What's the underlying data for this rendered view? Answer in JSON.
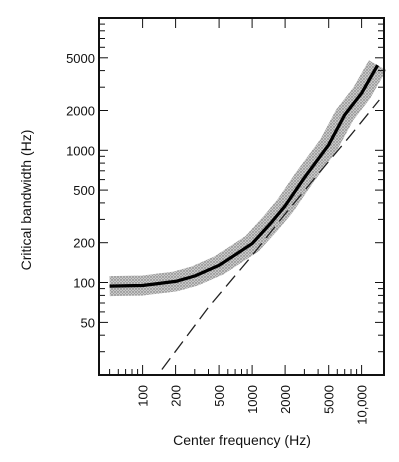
{
  "chart_data": {
    "type": "line",
    "title": "",
    "xlabel": "Center frequency (Hz)",
    "ylabel": "Critical bandwidth (Hz)",
    "x_scale": "log",
    "y_scale": "log",
    "xlim": [
      40,
      16000
    ],
    "ylim": [
      20,
      10000
    ],
    "x_tick_labels": [
      "100",
      "200",
      "500",
      "1000",
      "2000",
      "5000",
      "10,000"
    ],
    "x_tick_values": [
      100,
      200,
      500,
      1000,
      2000,
      5000,
      10000
    ],
    "y_tick_labels": [
      "50",
      "100",
      "200",
      "500",
      "1000",
      "2000",
      "5000"
    ],
    "y_tick_values": [
      50,
      100,
      200,
      500,
      1000,
      2000,
      5000
    ],
    "grid": false,
    "legend": "none",
    "series": [
      {
        "style": "solid-thick-with-shaded-band",
        "x": [
          50,
          100,
          200,
          300,
          500,
          700,
          1000,
          1500,
          2000,
          3000,
          5000,
          7000,
          10000,
          14000
        ],
        "y": [
          94,
          95,
          102,
          112,
          135,
          162,
          197,
          285,
          380,
          620,
          1100,
          1850,
          2700,
          4400
        ]
      },
      {
        "style": "dashed",
        "x": [
          150,
          400,
          1000,
          2000,
          4000,
          8000,
          14500
        ],
        "y": [
          22,
          65,
          160,
          330,
          660,
          1310,
          2400
        ]
      }
    ],
    "band_color": "#a8a8a8",
    "line_color": "#000000"
  }
}
